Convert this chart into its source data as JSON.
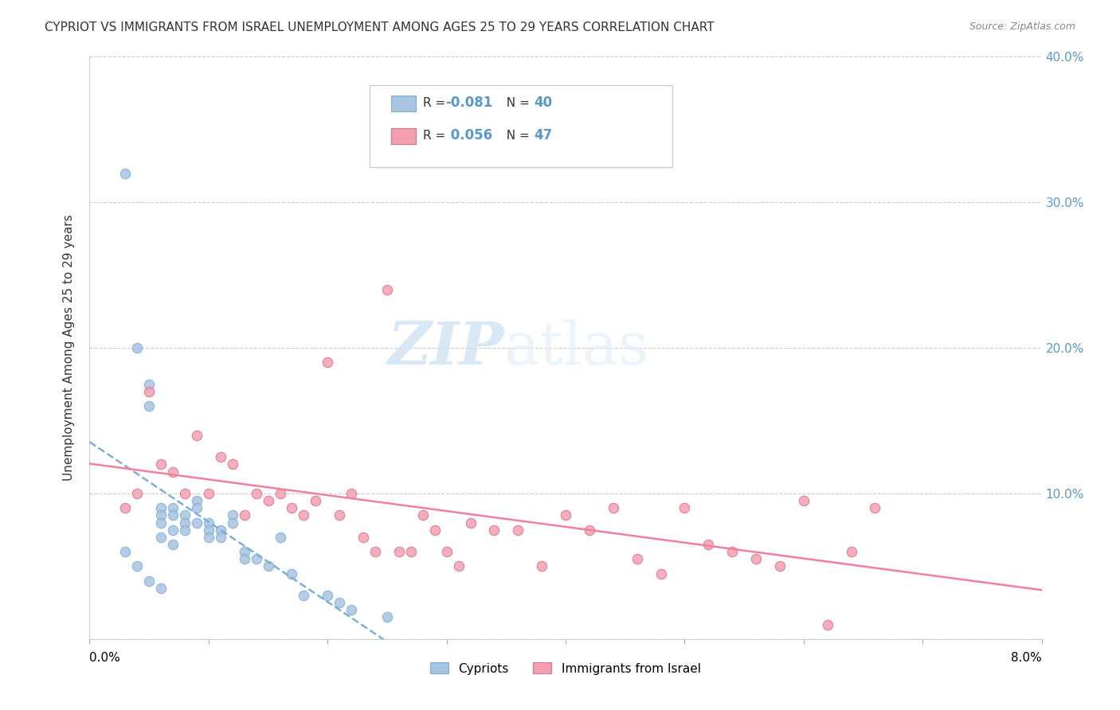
{
  "title": "CYPRIOT VS IMMIGRANTS FROM ISRAEL UNEMPLOYMENT AMONG AGES 25 TO 29 YEARS CORRELATION CHART",
  "source": "Source: ZipAtlas.com",
  "ylabel": "Unemployment Among Ages 25 to 29 years",
  "legend_bottom": [
    "Cypriots",
    "Immigrants from Israel"
  ],
  "cypriot_color": "#a8c4e0",
  "israel_color": "#f4a0b0",
  "cypriot_trend_color": "#7ab0d8",
  "israel_trend_color": "#f080a0",
  "watermark_zip": "ZIP",
  "watermark_atlas": "atlas",
  "xlim": [
    0.0,
    0.08
  ],
  "ylim": [
    0.0,
    0.4
  ],
  "yticks_right": [
    0.1,
    0.2,
    0.3,
    0.4
  ],
  "ytick_labels_right": [
    "10.0%",
    "20.0%",
    "30.0%",
    "40.0%"
  ],
  "cypriot_x": [
    0.003,
    0.004,
    0.005,
    0.005,
    0.006,
    0.006,
    0.006,
    0.006,
    0.007,
    0.007,
    0.007,
    0.007,
    0.008,
    0.008,
    0.008,
    0.009,
    0.009,
    0.009,
    0.01,
    0.01,
    0.01,
    0.011,
    0.011,
    0.012,
    0.012,
    0.013,
    0.013,
    0.014,
    0.015,
    0.016,
    0.017,
    0.018,
    0.02,
    0.021,
    0.022,
    0.025,
    0.003,
    0.004,
    0.005,
    0.006
  ],
  "cypriot_y": [
    0.32,
    0.2,
    0.175,
    0.16,
    0.09,
    0.085,
    0.08,
    0.07,
    0.09,
    0.085,
    0.075,
    0.065,
    0.085,
    0.08,
    0.075,
    0.095,
    0.09,
    0.08,
    0.08,
    0.075,
    0.07,
    0.075,
    0.07,
    0.085,
    0.08,
    0.06,
    0.055,
    0.055,
    0.05,
    0.07,
    0.045,
    0.03,
    0.03,
    0.025,
    0.02,
    0.015,
    0.06,
    0.05,
    0.04,
    0.035
  ],
  "israel_x": [
    0.003,
    0.004,
    0.005,
    0.006,
    0.007,
    0.008,
    0.009,
    0.01,
    0.011,
    0.012,
    0.013,
    0.014,
    0.015,
    0.016,
    0.017,
    0.018,
    0.019,
    0.02,
    0.021,
    0.022,
    0.023,
    0.024,
    0.025,
    0.026,
    0.027,
    0.028,
    0.029,
    0.03,
    0.031,
    0.032,
    0.034,
    0.036,
    0.038,
    0.04,
    0.042,
    0.044,
    0.046,
    0.048,
    0.05,
    0.052,
    0.054,
    0.056,
    0.058,
    0.06,
    0.062,
    0.064,
    0.066
  ],
  "israel_y": [
    0.09,
    0.1,
    0.17,
    0.12,
    0.115,
    0.1,
    0.14,
    0.1,
    0.125,
    0.12,
    0.085,
    0.1,
    0.095,
    0.1,
    0.09,
    0.085,
    0.095,
    0.19,
    0.085,
    0.1,
    0.07,
    0.06,
    0.24,
    0.06,
    0.06,
    0.085,
    0.075,
    0.06,
    0.05,
    0.08,
    0.075,
    0.075,
    0.05,
    0.085,
    0.075,
    0.09,
    0.055,
    0.045,
    0.09,
    0.065,
    0.06,
    0.055,
    0.05,
    0.095,
    0.01,
    0.06,
    0.09
  ]
}
